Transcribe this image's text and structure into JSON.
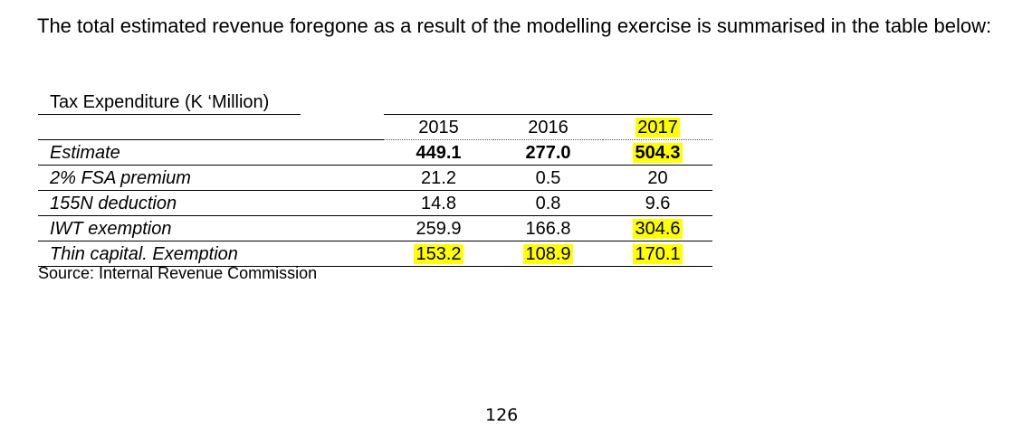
{
  "intro_text": "The total estimated revenue foregone as a result of the modelling exercise is summarised in the table below:",
  "table": {
    "caption": "Tax Expenditure (K ‘Million)",
    "years": [
      "2015",
      "2016",
      "2017"
    ],
    "rows": [
      {
        "label": "Estimate",
        "values": [
          "449.1",
          "277.0",
          "504.3"
        ],
        "bold": true,
        "highlighted": [
          false,
          false,
          true
        ]
      },
      {
        "label": "2% FSA premium",
        "values": [
          "21.2",
          "0.5",
          "20"
        ],
        "bold": false,
        "highlighted": [
          false,
          false,
          false
        ]
      },
      {
        "label": "155N deduction",
        "values": [
          "14.8",
          "0.8",
          "9.6"
        ],
        "bold": false,
        "highlighted": [
          false,
          false,
          false
        ]
      },
      {
        "label": "IWT exemption",
        "values": [
          "259.9",
          "166.8",
          "304.6"
        ],
        "bold": false,
        "highlighted": [
          false,
          false,
          true
        ]
      },
      {
        "label": "Thin capital. Exemption",
        "values": [
          "153.2",
          "108.9",
          "170.1"
        ],
        "bold": false,
        "highlighted": [
          true,
          true,
          true
        ]
      }
    ],
    "highlight_color": "#ffff00"
  },
  "source": "Source: Internal Revenue Commission",
  "page_number": "126"
}
